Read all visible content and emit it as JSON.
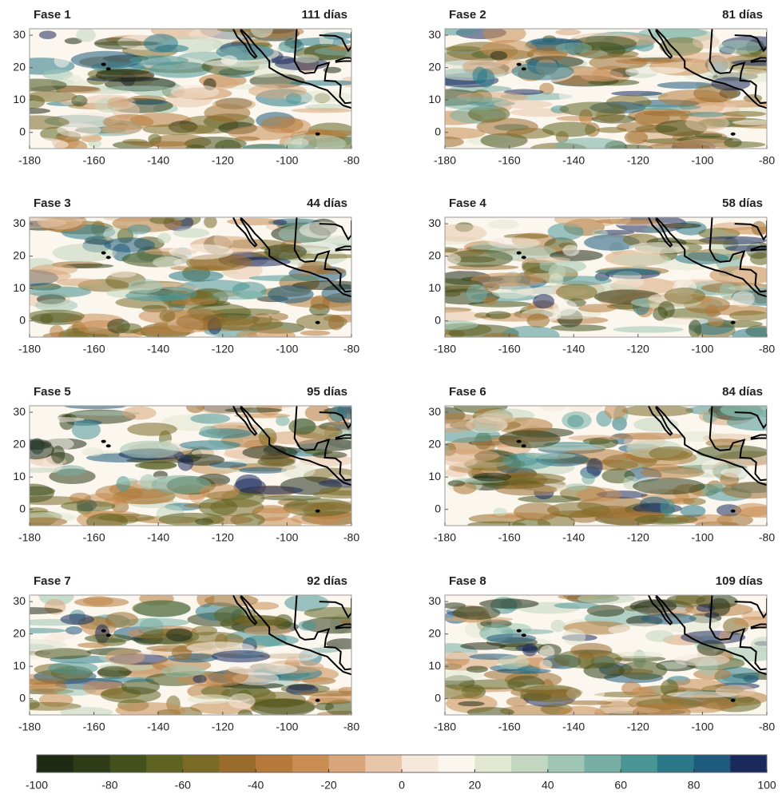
{
  "panels": [
    {
      "title": "Fase 1",
      "days": "111 días"
    },
    {
      "title": "Fase 2",
      "days": "81 días"
    },
    {
      "title": "Fase 3",
      "days": "44 días"
    },
    {
      "title": "Fase 4",
      "days": "58 días"
    },
    {
      "title": "Fase 5",
      "days": "95 días"
    },
    {
      "title": "Fase 6",
      "days": "84 días"
    },
    {
      "title": "Fase 7",
      "days": "92 días"
    },
    {
      "title": "Fase 8",
      "days": "109 días"
    }
  ],
  "map_axes": {
    "xlim": [
      -180,
      -80
    ],
    "ylim": [
      -5,
      32
    ],
    "xticks": [
      -180,
      -160,
      -140,
      -120,
      -100,
      -80
    ],
    "yticks": [
      0,
      10,
      20,
      30
    ]
  },
  "colorbar": {
    "lim": [
      -100,
      100
    ],
    "ticks": [
      -100,
      -80,
      -60,
      -40,
      -20,
      0,
      20,
      40,
      60,
      80,
      100
    ],
    "colors": [
      "#1f2a14",
      "#2e3b16",
      "#44501c",
      "#5e6322",
      "#7a6a26",
      "#9a6c2c",
      "#b57a3a",
      "#c98c52",
      "#d9a57a",
      "#e8c6aa",
      "#f6e8da",
      "#fbf6ee",
      "#e2e7d2",
      "#c3d7c0",
      "#9fc6b4",
      "#76aea4",
      "#4a9596",
      "#2a7888",
      "#1d5a7c",
      "#1a2a5c"
    ]
  }
}
